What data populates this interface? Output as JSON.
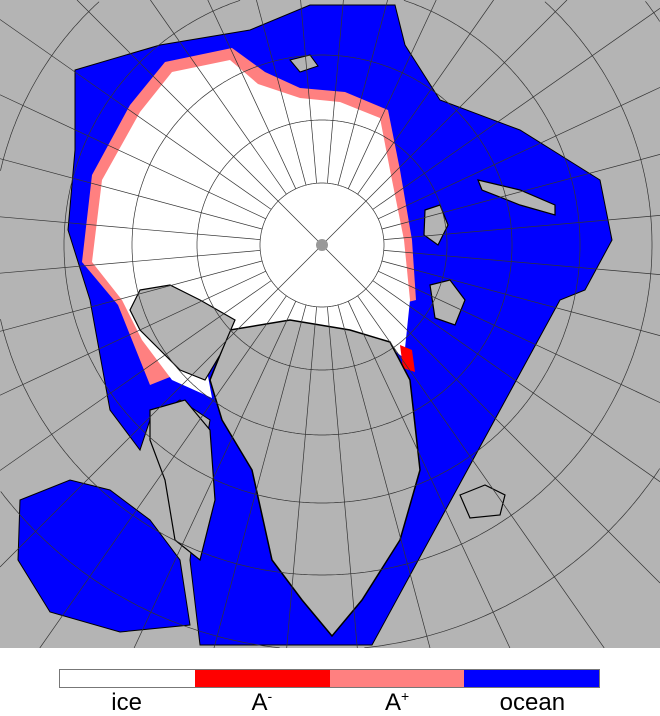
{
  "colors": {
    "land": "#b4b4b4",
    "ice": "#ffffff",
    "A_minus": "#ff0000",
    "A_plus": "#ff8080",
    "ocean": "#0000ff",
    "coast": "#000000",
    "grid": "#333333"
  },
  "legend": {
    "items": [
      {
        "label": "ice",
        "sup": "",
        "color": "#ffffff"
      },
      {
        "label": "A",
        "sup": "-",
        "color": "#ff0000"
      },
      {
        "label": "A",
        "sup": "+",
        "color": "#ff8080"
      },
      {
        "label": "ocean",
        "sup": "",
        "color": "#0000ff"
      }
    ]
  }
}
